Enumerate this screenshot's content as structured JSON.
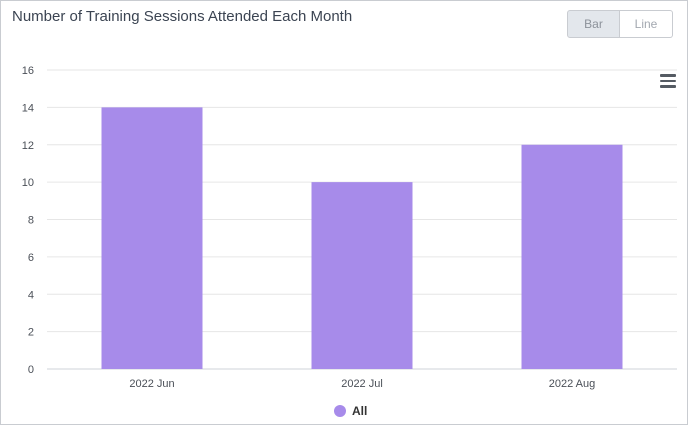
{
  "header": {
    "title": "Number of Training Sessions Attended Each Month",
    "view_toggle": {
      "bar_label": "Bar",
      "line_label": "Line",
      "selected": "Bar"
    }
  },
  "menu_icon": "hamburger-menu-icon",
  "colors": {
    "series": "#a78bea",
    "grid": "#e6e6e6"
  },
  "chart_data": {
    "type": "bar",
    "title": "Number of Training Sessions Attended Each Month",
    "categories": [
      "2022 Jun",
      "2022 Jul",
      "2022 Aug"
    ],
    "series": [
      {
        "name": "All",
        "values": [
          14,
          10,
          12
        ]
      }
    ],
    "ylim": [
      0,
      16
    ],
    "yticks": [
      "0",
      "2",
      "4",
      "6",
      "8",
      "10",
      "12",
      "14",
      "16"
    ],
    "grid": true,
    "legend": "bottom-center"
  }
}
